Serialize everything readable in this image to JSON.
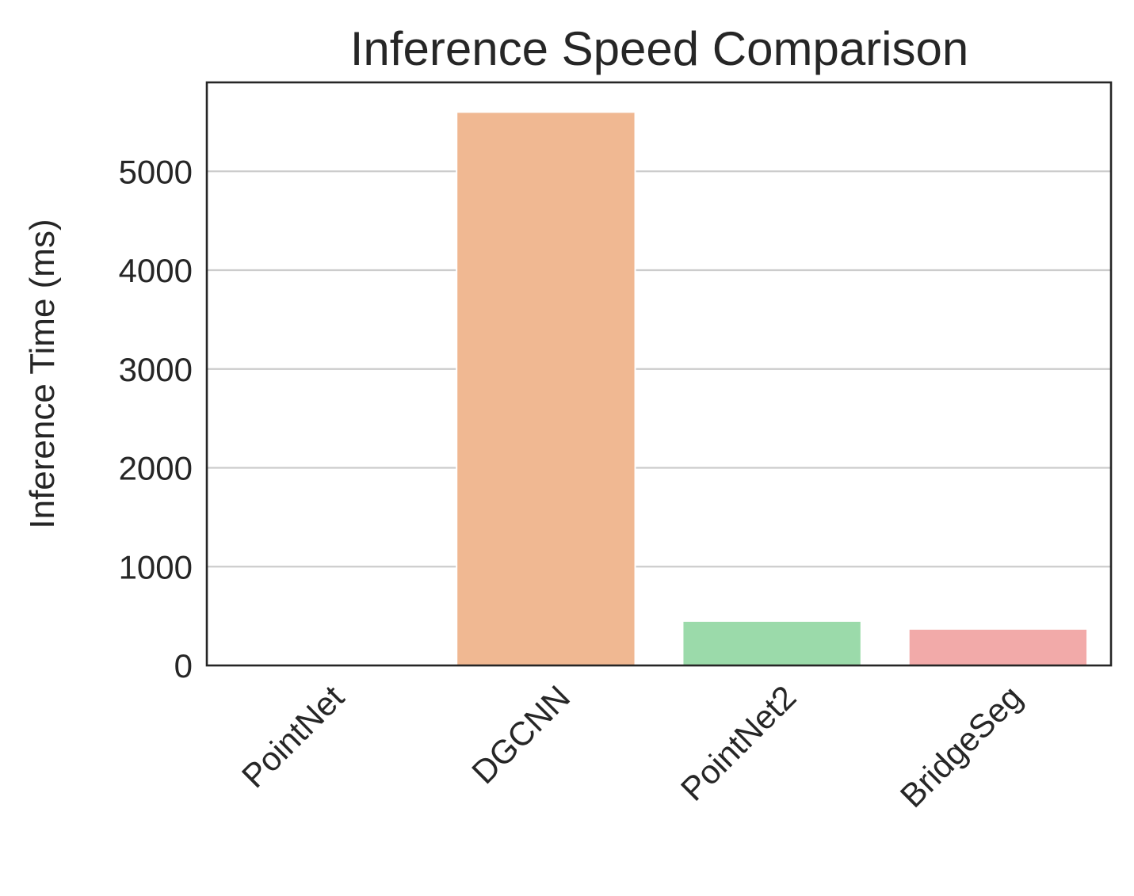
{
  "chart_data": {
    "type": "bar",
    "title": "Inference Speed Comparison",
    "xlabel": "",
    "ylabel": "Inference Time (ms)",
    "categories": [
      "PointNet",
      "DGCNN",
      "PointNet2",
      "BridgeSeg"
    ],
    "values": [
      5,
      5600,
      450,
      370
    ],
    "colors": [
      "#8fb5e6",
      "#f0b892",
      "#9bdaaa",
      "#f2aaa9"
    ],
    "ylim": [
      0,
      5900
    ],
    "yticks": [
      0,
      1000,
      2000,
      3000,
      4000,
      5000
    ],
    "ytick_labels": [
      "0",
      "1000",
      "2000",
      "3000",
      "4000",
      "5000"
    ],
    "grid": "horizontal",
    "legend": "none"
  }
}
